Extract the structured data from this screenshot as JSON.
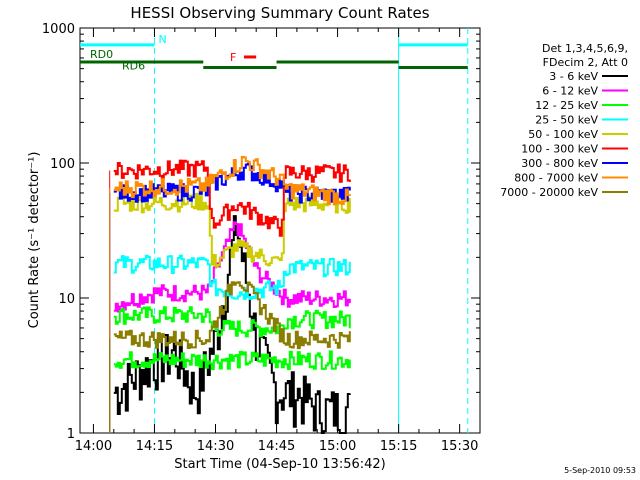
{
  "chart_data": {
    "type": "line",
    "title": "HESSI Observing Summary Count Rates",
    "xlabel": "Start Time (04-Sep-10 13:56:42)",
    "ylabel": "Count Rate (s⁻¹ detector⁻¹)",
    "y_scale": "log",
    "xlim": [
      "13:56:42",
      "15:35:00"
    ],
    "ylim": [
      1,
      1000
    ],
    "x_ticks": [
      "14:00",
      "14:15",
      "14:30",
      "14:45",
      "15:00",
      "15:15",
      "15:30"
    ],
    "y_ticks": [
      "1",
      "10",
      "100",
      "1000"
    ],
    "grid": false,
    "legend_placement": "right",
    "legend_header": [
      "Det 1,3,4,5,6,9,",
      "FDecim 2, Att 0"
    ],
    "data_window": [
      "14:04",
      "15:04"
    ],
    "series": [
      {
        "name": "3 - 6 keV",
        "color": "#000000",
        "profile": "rise",
        "points": [
          [
            "14:05",
            2.0
          ],
          [
            "14:15",
            3.5
          ],
          [
            "14:20",
            4.0
          ],
          [
            "14:25",
            2.0
          ],
          [
            "14:30",
            5.0
          ],
          [
            "14:35",
            35.0
          ],
          [
            "14:40",
            5.0
          ],
          [
            "14:45",
            2.0
          ],
          [
            "14:50",
            2.0
          ],
          [
            "14:55",
            1.5
          ],
          [
            "15:03",
            1.5
          ]
        ]
      },
      {
        "name": "6 - 12 keV",
        "color": "#ff00ff",
        "profile": "flare",
        "points": [
          [
            "14:05",
            9.0
          ],
          [
            "14:15",
            11.0
          ],
          [
            "14:28",
            11.0
          ],
          [
            "14:30",
            16.0
          ],
          [
            "14:35",
            36.0
          ],
          [
            "14:40",
            16.0
          ],
          [
            "14:47",
            10.0
          ],
          [
            "15:03",
            10.0
          ]
        ]
      },
      {
        "name": "12 - 25 keV",
        "color": "#00ff00",
        "profile": "two-level",
        "points": [
          [
            "14:05",
            7.5
          ],
          [
            "14:28",
            7.5
          ],
          [
            "14:29",
            6.0
          ],
          [
            "14:46",
            6.0
          ],
          [
            "14:47",
            7.0
          ],
          [
            "15:03",
            7.0
          ],
          [
            "14:05",
            3.5
          ],
          [
            "15:03",
            3.5
          ]
        ]
      },
      {
        "name": "25 - 50 keV",
        "color": "#00ffff",
        "profile": "bump",
        "points": [
          [
            "14:05",
            18.0
          ],
          [
            "14:28",
            18.0
          ],
          [
            "14:29",
            12.0
          ],
          [
            "14:35",
            11.0
          ],
          [
            "14:46",
            12.0
          ],
          [
            "14:47",
            17.0
          ],
          [
            "15:03",
            17.0
          ]
        ]
      },
      {
        "name": "50 - 100 keV",
        "color": "#cccc00",
        "profile": "bump",
        "points": [
          [
            "14:05",
            50.0
          ],
          [
            "14:28",
            52.0
          ],
          [
            "14:29",
            18.0
          ],
          [
            "14:35",
            24.0
          ],
          [
            "14:46",
            18.0
          ],
          [
            "14:47",
            50.0
          ],
          [
            "15:03",
            50.0
          ]
        ]
      },
      {
        "name": "100 - 300 keV",
        "color": "#ff0000",
        "profile": "bump",
        "points": [
          [
            "14:05",
            88.0
          ],
          [
            "14:28",
            92.0
          ],
          [
            "14:29",
            35.0
          ],
          [
            "14:35",
            50.0
          ],
          [
            "14:46",
            33.0
          ],
          [
            "14:47",
            85.0
          ],
          [
            "15:03",
            85.0
          ]
        ]
      },
      {
        "name": "300 - 800 keV",
        "color": "#0000ff",
        "profile": "bump",
        "points": [
          [
            "14:05",
            60.0
          ],
          [
            "14:28",
            62.0
          ],
          [
            "14:29",
            70.0
          ],
          [
            "14:37",
            90.0
          ],
          [
            "14:46",
            70.0
          ],
          [
            "14:47",
            60.0
          ],
          [
            "15:03",
            58.0
          ]
        ]
      },
      {
        "name": "800 - 7000 keV",
        "color": "#ff8c00",
        "profile": "bump",
        "points": [
          [
            "14:05",
            65.0
          ],
          [
            "14:28",
            68.0
          ],
          [
            "14:29",
            75.0
          ],
          [
            "14:37",
            105.0
          ],
          [
            "14:46",
            75.0
          ],
          [
            "14:47",
            65.0
          ],
          [
            "15:03",
            55.0
          ]
        ]
      },
      {
        "name": "7000 - 20000 keV",
        "color": "#8b7d00",
        "profile": "flare",
        "points": [
          [
            "14:05",
            5.0
          ],
          [
            "14:28",
            5.0
          ],
          [
            "14:35",
            15.0
          ],
          [
            "14:42",
            8.0
          ],
          [
            "14:47",
            5.0
          ],
          [
            "15:03",
            5.0
          ]
        ]
      }
    ],
    "annotations": {
      "night_marker": {
        "label": "N",
        "color": "#00ffff",
        "value": 750,
        "segments": [
          [
            "13:56:42",
            "14:15"
          ],
          [
            "15:15",
            "15:32"
          ]
        ],
        "dashed_at": [
          "14:15",
          "15:32"
        ],
        "solid_at": [
          "15:15"
        ]
      },
      "flare_marker": {
        "label": "F",
        "color": "#ff0000",
        "value": 610,
        "segments": [
          [
            "14:37",
            "14:40"
          ]
        ]
      },
      "rate_decimation": {
        "labels": [
          "RD0",
          "RD6"
        ],
        "color": "#006400",
        "value": 510,
        "segments": [
          [
            "13:56:42",
            "14:27"
          ],
          [
            "14:27",
            "14:45"
          ],
          [
            "14:45",
            "15:15"
          ],
          [
            "15:15",
            "15:32"
          ]
        ],
        "value_segments": [
          560,
          510,
          560,
          510
        ]
      }
    }
  },
  "footer": {
    "timestamp": "5-Sep-2010 09:53"
  }
}
